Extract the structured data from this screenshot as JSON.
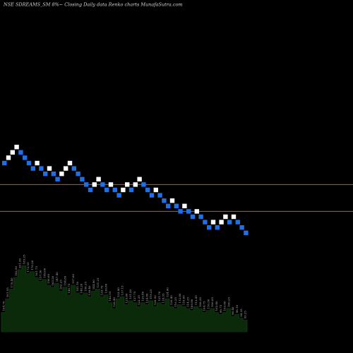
{
  "header": {
    "title": "NSE SDREAMS_SM 8%~  Closing Daily data  Renko  charts MunafaSutra.com"
  },
  "colors": {
    "background": "#000000",
    "brick_up": "#ffffff",
    "brick_down": "#1e6fe8",
    "reference_line": "#b5651d",
    "volume_fill": "#0a2a0a",
    "volume_outline": "#153d15"
  },
  "chart_data": [
    {
      "type": "renko",
      "bricks": [
        {
          "x": 1,
          "y": 96,
          "dir": "down"
        },
        {
          "x": 2,
          "y": 97,
          "dir": "up"
        },
        {
          "x": 3,
          "y": 98,
          "dir": "up"
        },
        {
          "x": 4,
          "y": 99,
          "dir": "up"
        },
        {
          "x": 5,
          "y": 98,
          "dir": "down"
        },
        {
          "x": 6,
          "y": 97,
          "dir": "down"
        },
        {
          "x": 7,
          "y": 96,
          "dir": "down"
        },
        {
          "x": 8,
          "y": 95,
          "dir": "down"
        },
        {
          "x": 9,
          "y": 96,
          "dir": "up"
        },
        {
          "x": 10,
          "y": 95,
          "dir": "down"
        },
        {
          "x": 11,
          "y": 94,
          "dir": "down"
        },
        {
          "x": 12,
          "y": 95,
          "dir": "up"
        },
        {
          "x": 13,
          "y": 94,
          "dir": "down"
        },
        {
          "x": 14,
          "y": 93,
          "dir": "down"
        },
        {
          "x": 15,
          "y": 94,
          "dir": "up"
        },
        {
          "x": 16,
          "y": 95,
          "dir": "up"
        },
        {
          "x": 17,
          "y": 96,
          "dir": "up"
        },
        {
          "x": 18,
          "y": 95,
          "dir": "down"
        },
        {
          "x": 19,
          "y": 94,
          "dir": "down"
        },
        {
          "x": 20,
          "y": 93,
          "dir": "down"
        },
        {
          "x": 21,
          "y": 92,
          "dir": "down"
        },
        {
          "x": 22,
          "y": 91,
          "dir": "down"
        },
        {
          "x": 23,
          "y": 92,
          "dir": "up"
        },
        {
          "x": 24,
          "y": 93,
          "dir": "up"
        },
        {
          "x": 25,
          "y": 92,
          "dir": "down"
        },
        {
          "x": 26,
          "y": 91,
          "dir": "down"
        },
        {
          "x": 27,
          "y": 92,
          "dir": "up"
        },
        {
          "x": 28,
          "y": 91,
          "dir": "down"
        },
        {
          "x": 29,
          "y": 90,
          "dir": "down"
        },
        {
          "x": 30,
          "y": 91,
          "dir": "up"
        },
        {
          "x": 31,
          "y": 92,
          "dir": "up"
        },
        {
          "x": 32,
          "y": 91,
          "dir": "down"
        },
        {
          "x": 33,
          "y": 92,
          "dir": "up"
        },
        {
          "x": 34,
          "y": 93,
          "dir": "up"
        },
        {
          "x": 35,
          "y": 92,
          "dir": "down"
        },
        {
          "x": 36,
          "y": 91,
          "dir": "down"
        },
        {
          "x": 37,
          "y": 90,
          "dir": "down"
        },
        {
          "x": 38,
          "y": 91,
          "dir": "up"
        },
        {
          "x": 39,
          "y": 90,
          "dir": "down"
        },
        {
          "x": 40,
          "y": 89,
          "dir": "down"
        },
        {
          "x": 41,
          "y": 88,
          "dir": "down"
        },
        {
          "x": 42,
          "y": 89,
          "dir": "up"
        },
        {
          "x": 43,
          "y": 88,
          "dir": "down"
        },
        {
          "x": 44,
          "y": 87,
          "dir": "down"
        },
        {
          "x": 45,
          "y": 88,
          "dir": "up"
        },
        {
          "x": 46,
          "y": 87,
          "dir": "down"
        },
        {
          "x": 47,
          "y": 86,
          "dir": "down"
        },
        {
          "x": 48,
          "y": 87,
          "dir": "up"
        },
        {
          "x": 49,
          "y": 86,
          "dir": "down"
        },
        {
          "x": 50,
          "y": 85,
          "dir": "down"
        },
        {
          "x": 51,
          "y": 84,
          "dir": "down"
        },
        {
          "x": 52,
          "y": 85,
          "dir": "up"
        },
        {
          "x": 53,
          "y": 84,
          "dir": "down"
        },
        {
          "x": 54,
          "y": 85,
          "dir": "up"
        },
        {
          "x": 55,
          "y": 86,
          "dir": "up"
        },
        {
          "x": 56,
          "y": 85,
          "dir": "down"
        },
        {
          "x": 57,
          "y": 86,
          "dir": "up"
        },
        {
          "x": 58,
          "y": 85,
          "dir": "down"
        },
        {
          "x": 59,
          "y": 84,
          "dir": "down"
        },
        {
          "x": 60,
          "y": 83,
          "dir": "down"
        }
      ],
      "reference_lines": [
        92,
        87
      ],
      "volume": {
        "values": [
          10,
          17,
          22,
          28,
          32,
          34,
          30,
          31,
          28,
          26,
          27,
          24,
          23,
          25,
          21,
          23,
          19,
          24,
          20,
          19,
          20,
          18,
          21,
          22,
          18,
          19,
          15,
          12,
          17,
          18,
          14,
          16,
          15,
          13,
          15,
          14,
          16,
          13,
          15,
          14,
          17,
          13,
          12,
          14,
          13,
          12,
          11,
          13,
          12,
          10,
          11,
          12,
          10,
          9,
          10,
          12,
          8,
          9,
          7,
          6
        ],
        "max": 40,
        "labels": [
          "164.70",
          "161.55",
          "178.40",
          "182.50",
          "201.50",
          "185.25",
          "172.55",
          "170.20",
          "161.75",
          "157.30",
          "149.60",
          "156.00",
          "163.20",
          "147.40",
          "162.25",
          "154.80",
          "148.75",
          "157.60",
          "141.10",
          "148.20",
          "150.35",
          "138.40",
          "144.90",
          "131.25",
          "129.70",
          "136.80",
          "142.55",
          "128.40",
          "133.90",
          "137.15",
          "125.60",
          "131.20",
          "127.75",
          "122.35",
          "129.40",
          "124.80",
          "119.25",
          "126.50",
          "121.70",
          "118.35",
          "124.90",
          "120.40",
          "116.25",
          "112.80",
          "118.60",
          "114.35",
          "109.90",
          "113.45",
          "108.20",
          "104.75",
          "110.30",
          "106.85",
          "102.40",
          "99.75",
          "103.60",
          "100.25",
          "96.40",
          "98.10",
          "94.35",
          "93.25"
        ]
      }
    }
  ]
}
